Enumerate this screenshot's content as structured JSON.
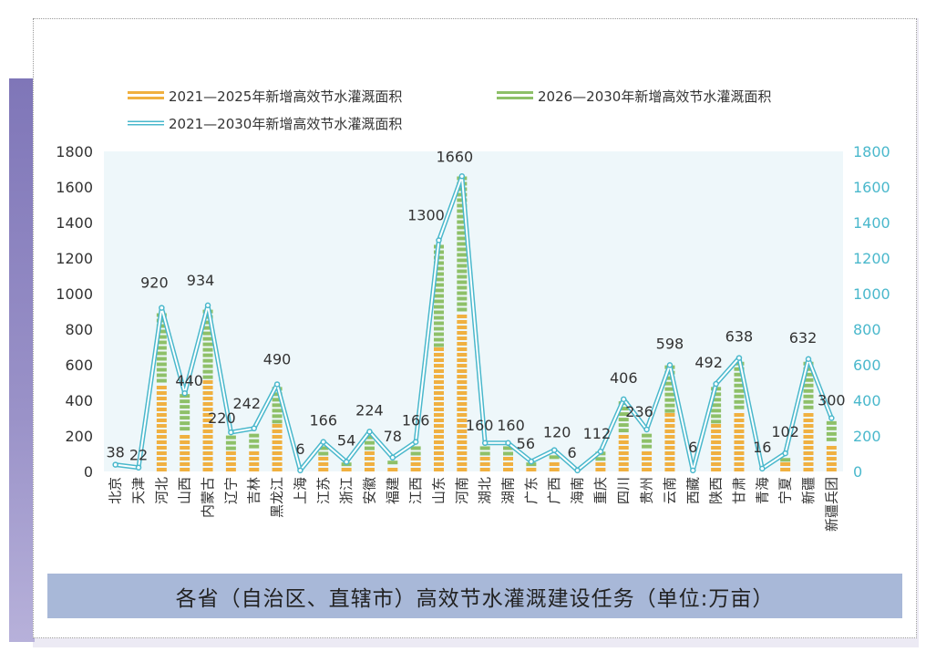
{
  "chart_data": {
    "type": "bar",
    "caption": "各省（自治区、直辖市）高效节水灌溉建设任务（单位:万亩）",
    "categories": [
      "北京",
      "天津",
      "河北",
      "山西",
      "内蒙古",
      "辽宁",
      "吉林",
      "黑龙江",
      "上海",
      "江苏",
      "浙江",
      "安徽",
      "福建",
      "江西",
      "山东",
      "河南",
      "湖北",
      "湖南",
      "广东",
      "广西",
      "海南",
      "重庆",
      "四川",
      "贵州",
      "云南",
      "西藏",
      "陕西",
      "甘肃",
      "青海",
      "宁夏",
      "新疆",
      "新疆兵团"
    ],
    "series": [
      {
        "name": "2021—2025年新增高效节水灌溉面积",
        "kind": "bar",
        "color": "#f0b040",
        "values": [
          20,
          10,
          500,
          230,
          520,
          120,
          130,
          270,
          3,
          90,
          30,
          120,
          40,
          90,
          700,
          900,
          90,
          90,
          30,
          70,
          3,
          60,
          220,
          130,
          330,
          3,
          270,
          350,
          8,
          55,
          350,
          170
        ]
      },
      {
        "name": "2026—2030年新增高效节水灌溉面积",
        "kind": "bar",
        "color": "#8ec068",
        "values": [
          18,
          12,
          420,
          210,
          414,
          100,
          112,
          220,
          3,
          76,
          24,
          104,
          38,
          76,
          600,
          760,
          70,
          70,
          26,
          50,
          3,
          52,
          186,
          106,
          268,
          3,
          222,
          288,
          8,
          47,
          282,
          130
        ]
      },
      {
        "name": "2021—2030年新增高效节水灌溉面积",
        "kind": "line",
        "color": "#4ab8cc",
        "values": [
          38,
          22,
          920,
          440,
          934,
          220,
          242,
          490,
          6,
          166,
          54,
          224,
          78,
          166,
          1300,
          1660,
          160,
          160,
          56,
          120,
          6,
          112,
          406,
          236,
          598,
          6,
          492,
          638,
          16,
          102,
          632,
          300
        ]
      }
    ],
    "data_labels": [
      "38",
      "22",
      "920",
      "440",
      "934",
      "220",
      "242",
      "490",
      "6",
      "166",
      "54",
      "224",
      "78",
      "166",
      "1300",
      "1660",
      "160",
      "160",
      "56",
      "120",
      "6",
      "112",
      "406",
      "236",
      "598",
      "6",
      "492",
      "638",
      "16",
      "102",
      "632",
      "300"
    ],
    "y_left": {
      "min": 0,
      "max": 1800,
      "ticks": [
        "0",
        "200",
        "400",
        "600",
        "800",
        "1000",
        "1200",
        "1400",
        "1600",
        "1800"
      ]
    },
    "y_right": {
      "min": 0,
      "max": 1800,
      "ticks": [
        "0",
        "200",
        "400",
        "600",
        "800",
        "1000",
        "1200",
        "1400",
        "1600",
        "1800"
      ]
    },
    "legend_position": "top",
    "plot_background": "#eef7fa",
    "axis_right_color": "#4ab8cc"
  }
}
